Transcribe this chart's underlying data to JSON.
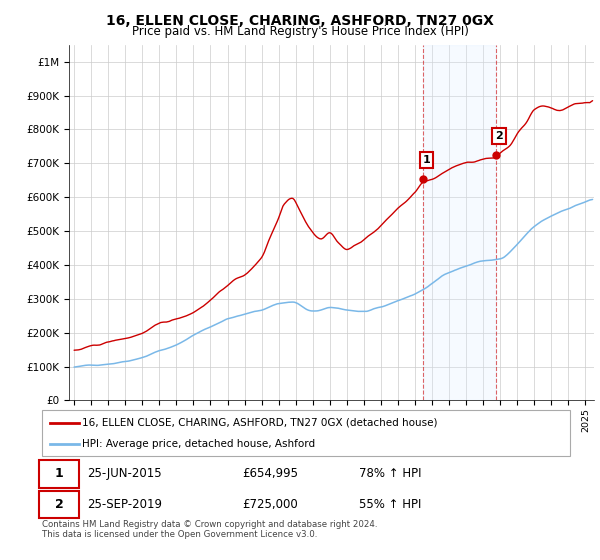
{
  "title": "16, ELLEN CLOSE, CHARING, ASHFORD, TN27 0GX",
  "subtitle": "Price paid vs. HM Land Registry's House Price Index (HPI)",
  "hpi_color": "#7ab8e8",
  "price_color": "#cc0000",
  "bg_color": "#ffffff",
  "grid_color": "#cccccc",
  "shade_color": "#ddeeff",
  "ylim": [
    0,
    1050000
  ],
  "yticks": [
    0,
    100000,
    200000,
    300000,
    400000,
    500000,
    600000,
    700000,
    800000,
    900000,
    1000000
  ],
  "ytick_labels": [
    "£0",
    "£100K",
    "£200K",
    "£300K",
    "£400K",
    "£500K",
    "£600K",
    "£700K",
    "£800K",
    "£900K",
    "£1M"
  ],
  "xlim_start": 1994.7,
  "xlim_end": 2025.5,
  "xticks": [
    1995,
    1996,
    1997,
    1998,
    1999,
    2000,
    2001,
    2002,
    2003,
    2004,
    2005,
    2006,
    2007,
    2008,
    2009,
    2010,
    2011,
    2012,
    2013,
    2014,
    2015,
    2016,
    2017,
    2018,
    2019,
    2020,
    2021,
    2022,
    2023,
    2024,
    2025
  ],
  "sale1_x": 2015.48,
  "sale1_y": 654995,
  "sale1_label": "1",
  "sale2_x": 2019.73,
  "sale2_y": 725000,
  "sale2_label": "2",
  "legend_line1": "16, ELLEN CLOSE, CHARING, ASHFORD, TN27 0GX (detached house)",
  "legend_line2": "HPI: Average price, detached house, Ashford",
  "table_row1": [
    "1",
    "25-JUN-2015",
    "£654,995",
    "78% ↑ HPI"
  ],
  "table_row2": [
    "2",
    "25-SEP-2019",
    "£725,000",
    "55% ↑ HPI"
  ],
  "footer": "Contains HM Land Registry data © Crown copyright and database right 2024.\nThis data is licensed under the Open Government Licence v3.0.",
  "shade_x_start": 2015.48,
  "shade_x_end": 2019.73
}
